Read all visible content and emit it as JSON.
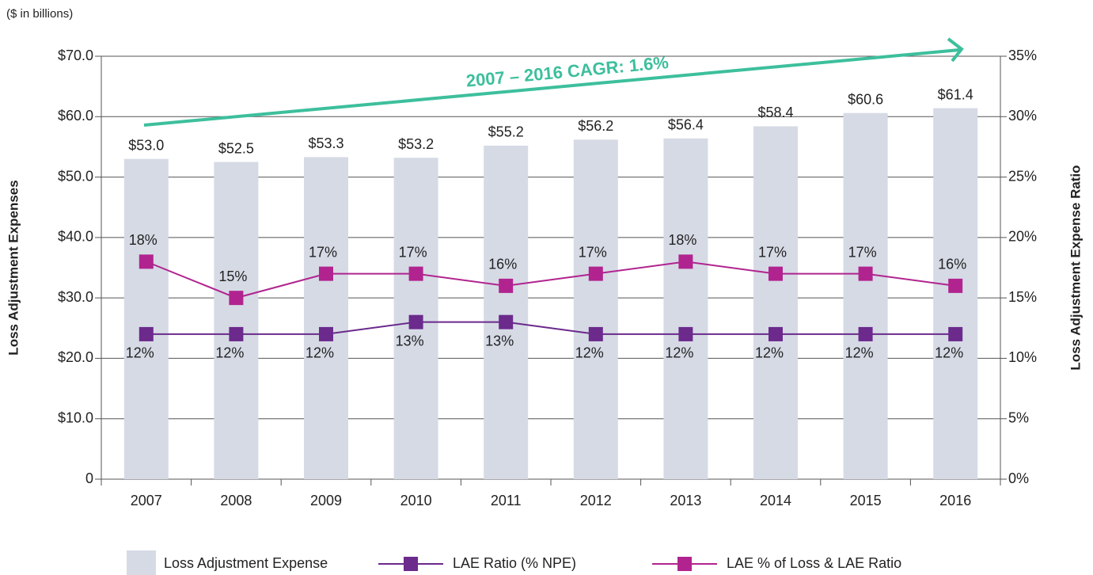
{
  "chart_data": {
    "type": "bar",
    "subtitle": "($ in billions)",
    "y_label": "Loss Adjustment Expenses",
    "y2_label": "Loss Adjustment Expense Ratio",
    "annotation": "2007 – 2016 CAGR: 1.6%",
    "categories": [
      "2007",
      "2008",
      "2009",
      "2010",
      "2011",
      "2012",
      "2013",
      "2014",
      "2015",
      "2016"
    ],
    "series": [
      {
        "name": "Loss Adjustment Expense",
        "type": "bar",
        "color": "#d6dae5",
        "values": [
          53.0,
          52.5,
          53.3,
          53.2,
          55.2,
          56.2,
          56.4,
          58.4,
          60.6,
          61.4
        ],
        "value_labels": [
          "$53.0",
          "$52.5",
          "$53.3",
          "$53.2",
          "$55.2",
          "$56.2",
          "$56.4",
          "$58.4",
          "$60.6",
          "$61.4"
        ]
      },
      {
        "name": "LAE Ratio (% NPE)",
        "type": "line",
        "axis": "y2",
        "color": "#6b2a8c",
        "values": [
          12,
          12,
          12,
          13,
          13,
          12,
          12,
          12,
          12,
          12
        ],
        "value_labels": [
          "12%",
          "12%",
          "12%",
          "13%",
          "13%",
          "12%",
          "12%",
          "12%",
          "12%",
          "12%"
        ]
      },
      {
        "name": "LAE % of Loss & LAE Ratio",
        "type": "line",
        "axis": "y2",
        "color": "#b1248f",
        "values": [
          18,
          15,
          17,
          17,
          16,
          17,
          18,
          17,
          17,
          16
        ],
        "value_labels": [
          "18%",
          "15%",
          "17%",
          "17%",
          "16%",
          "17%",
          "18%",
          "17%",
          "17%",
          "16%"
        ]
      }
    ],
    "ylim": [
      0,
      70
    ],
    "yticks": [
      0,
      {
        "value": 10,
        "label": "$10.0"
      },
      {
        "value": 20,
        "label": "$20.0"
      },
      {
        "value": 30,
        "label": "$30.0"
      },
      {
        "value": 40,
        "label": "$40.0"
      },
      {
        "value": 50,
        "label": "$50.0"
      },
      {
        "value": 60,
        "label": "$60.0"
      },
      {
        "value": 70,
        "label": "$70.0"
      }
    ],
    "y2lim": [
      0,
      35
    ],
    "y2ticks": [
      {
        "value": 0,
        "label": "0%"
      },
      {
        "value": 5,
        "label": "5%"
      },
      {
        "value": 10,
        "label": "10%"
      },
      {
        "value": 15,
        "label": "15%"
      },
      {
        "value": 20,
        "label": "20%"
      },
      {
        "value": 25,
        "label": "25%"
      },
      {
        "value": 30,
        "label": "30%"
      },
      {
        "value": 35,
        "label": "35%"
      }
    ],
    "grid": true
  }
}
